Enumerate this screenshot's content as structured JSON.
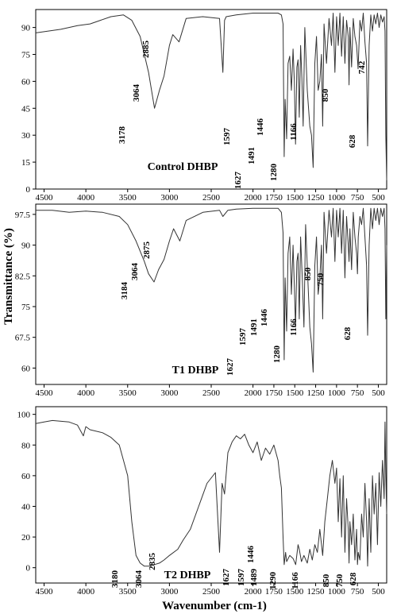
{
  "chart_data": [
    {
      "type": "line",
      "title": "Control DHBP",
      "xlim": [
        4600,
        400
      ],
      "ylim": [
        0,
        100
      ],
      "x_ticks": [
        "4500",
        "4000",
        "3500",
        "3000",
        "2500",
        "2000",
        "1750",
        "1500",
        "1250",
        "1000",
        "750",
        "500"
      ],
      "x_tick_values": [
        4500,
        4000,
        3500,
        3000,
        2500,
        2000,
        1750,
        1500,
        1250,
        1000,
        750,
        500
      ],
      "y_ticks": [
        "0",
        "15",
        "30",
        "45",
        "60",
        "75",
        "90"
      ],
      "y_tick_values": [
        0,
        15,
        30,
        45,
        60,
        75,
        90
      ],
      "peak_labels": [
        "3178",
        "3064",
        "2885",
        "1627",
        "1597",
        "1491",
        "1446",
        "1280",
        "1166",
        "850",
        "742",
        "628"
      ],
      "series": [
        {
          "x": [
            4600,
            4450,
            4300,
            4100,
            3950,
            3700,
            3550,
            3450,
            3350,
            3250,
            3178,
            3120,
            3064,
            3000,
            2960,
            2885,
            2800,
            2600,
            2400,
            2360,
            2340,
            2320,
            2200,
            2000,
            1800,
            1700,
            1660,
            1640,
            1627,
            1615,
            1597,
            1580,
            1560,
            1540,
            1520,
            1505,
            1491,
            1475,
            1460,
            1446,
            1430,
            1415,
            1400,
            1380,
            1350,
            1320,
            1300,
            1280,
            1260,
            1240,
            1220,
            1200,
            1180,
            1166,
            1150,
            1120,
            1090,
            1060,
            1040,
            1020,
            1000,
            980,
            960,
            940,
            920,
            900,
            880,
            860,
            850,
            840,
            820,
            800,
            780,
            760,
            742,
            720,
            700,
            680,
            660,
            640,
            628,
            610,
            590,
            570,
            550,
            530,
            510,
            490,
            470,
            450,
            430,
            420,
            410,
            400
          ],
          "y": [
            87,
            88,
            89,
            91,
            92,
            96,
            97,
            94,
            85,
            65,
            45,
            55,
            63,
            80,
            86,
            82,
            95,
            96,
            95,
            65,
            94,
            96,
            97,
            98,
            98,
            98,
            97,
            92,
            18,
            50,
            28,
            70,
            74,
            55,
            78,
            60,
            25,
            68,
            72,
            40,
            80,
            62,
            35,
            90,
            55,
            35,
            30,
            12,
            70,
            85,
            55,
            60,
            75,
            35,
            92,
            70,
            95,
            80,
            98,
            65,
            96,
            80,
            98,
            74,
            96,
            70,
            94,
            85,
            58,
            90,
            68,
            95,
            85,
            80,
            67,
            94,
            88,
            98,
            82,
            70,
            24,
            80,
            97,
            88,
            97,
            92,
            98,
            90,
            97,
            93,
            96,
            88,
            30,
            5
          ]
        }
      ]
    },
    {
      "type": "line",
      "title": "T1 DHBP",
      "xlim": [
        4600,
        400
      ],
      "ylim": [
        56,
        100
      ],
      "x_ticks": [
        "4500",
        "4000",
        "3500",
        "3000",
        "2500",
        "2000",
        "1750",
        "1500",
        "1250",
        "1000",
        "750",
        "500"
      ],
      "x_tick_values": [
        4500,
        4000,
        3500,
        3000,
        2500,
        2000,
        1750,
        1500,
        1250,
        1000,
        750,
        500
      ],
      "y_ticks": [
        "60",
        "67.5",
        "75",
        "82.5",
        "90",
        "97.5"
      ],
      "y_tick_values": [
        60,
        67.5,
        75,
        82.5,
        90,
        97.5
      ],
      "y_axis_title": "Transmittance (%)",
      "peak_labels": [
        "3184",
        "3064",
        "2875",
        "1627",
        "1597",
        "1491",
        "1446",
        "1280",
        "1166",
        "850",
        "750",
        "628"
      ],
      "series": [
        {
          "x": [
            4600,
            4400,
            4200,
            4000,
            3800,
            3600,
            3500,
            3400,
            3300,
            3250,
            3184,
            3130,
            3064,
            3000,
            2950,
            2875,
            2800,
            2600,
            2400,
            2360,
            2300,
            2200,
            2000,
            1800,
            1700,
            1660,
            1640,
            1627,
            1615,
            1597,
            1580,
            1560,
            1540,
            1520,
            1505,
            1491,
            1475,
            1460,
            1446,
            1430,
            1410,
            1390,
            1370,
            1350,
            1320,
            1300,
            1280,
            1260,
            1240,
            1220,
            1200,
            1180,
            1166,
            1150,
            1120,
            1090,
            1060,
            1040,
            1020,
            1000,
            980,
            960,
            940,
            920,
            900,
            880,
            860,
            850,
            840,
            820,
            800,
            780,
            760,
            750,
            740,
            720,
            700,
            680,
            660,
            640,
            628,
            610,
            590,
            570,
            550,
            530,
            510,
            490,
            470,
            450,
            430,
            420,
            410,
            400
          ],
          "y": [
            98.5,
            98.5,
            98,
            98.3,
            98,
            97,
            95,
            91,
            86,
            83,
            81,
            84,
            86.5,
            91,
            94,
            91,
            96,
            98,
            98.5,
            97,
            98.5,
            98.8,
            99,
            99,
            99,
            98,
            93,
            62,
            82,
            69,
            88,
            92,
            78,
            90,
            80,
            70,
            86,
            88,
            72,
            92,
            82,
            70,
            95,
            85,
            70,
            66,
            59,
            85,
            92,
            78,
            82,
            90,
            72,
            98,
            88,
            98.5,
            92,
            99,
            86,
            98.5,
            92,
            99,
            88,
            98.5,
            82,
            97,
            90,
            86,
            94,
            84,
            98,
            92,
            88,
            83,
            92,
            97,
            95,
            99,
            92,
            85,
            68,
            90,
            99,
            94,
            99,
            96,
            99,
            95,
            99,
            97,
            99,
            94,
            72,
            90
          ]
        }
      ]
    },
    {
      "type": "line",
      "title": "T2 DHBP",
      "xlim": [
        4600,
        400
      ],
      "ylim": [
        -10,
        105
      ],
      "x_ticks": [
        "4500",
        "4000",
        "3500",
        "3000",
        "2500",
        "2000",
        "1750",
        "1500",
        "1250",
        "1000",
        "750",
        "500"
      ],
      "x_tick_values": [
        4500,
        4000,
        3500,
        3000,
        2500,
        2000,
        1750,
        1500,
        1250,
        1000,
        750,
        500
      ],
      "y_ticks": [
        "0",
        "20",
        "40",
        "60",
        "80",
        "100"
      ],
      "y_tick_values": [
        0,
        20,
        40,
        60,
        80,
        100
      ],
      "x_axis_title": "Wavenumber (cm-1)",
      "peak_labels": [
        "3180",
        "3064",
        "2835",
        "1627",
        "1597",
        "1489",
        "1446",
        "1290",
        "1166",
        "850",
        "750",
        "628"
      ],
      "series": [
        {
          "x": [
            4600,
            4500,
            4400,
            4200,
            4100,
            4030,
            4000,
            3950,
            3800,
            3700,
            3600,
            3500,
            3450,
            3400,
            3350,
            3300,
            3250,
            3180,
            3120,
            3064,
            3000,
            2900,
            2835,
            2750,
            2650,
            2550,
            2450,
            2400,
            2370,
            2340,
            2300,
            2250,
            2200,
            2150,
            2100,
            2050,
            2000,
            1950,
            1900,
            1850,
            1800,
            1750,
            1700,
            1680,
            1660,
            1640,
            1627,
            1610,
            1597,
            1560,
            1520,
            1489,
            1460,
            1446,
            1420,
            1390,
            1350,
            1320,
            1290,
            1260,
            1230,
            1200,
            1166,
            1140,
            1110,
            1080,
            1050,
            1020,
            1000,
            980,
            960,
            940,
            920,
            900,
            880,
            860,
            850,
            840,
            820,
            800,
            780,
            760,
            750,
            740,
            720,
            700,
            680,
            660,
            640,
            628,
            610,
            590,
            570,
            550,
            530,
            510,
            490,
            470,
            450,
            430,
            420,
            410,
            400
          ],
          "y": [
            94,
            95,
            96,
            95,
            93,
            86,
            92,
            90,
            88,
            85,
            80,
            60,
            30,
            8,
            3,
            1,
            1,
            2,
            3,
            5,
            8,
            12,
            18,
            25,
            40,
            55,
            62,
            10,
            55,
            48,
            75,
            82,
            86,
            84,
            87,
            80,
            75,
            82,
            70,
            78,
            74,
            80,
            70,
            60,
            52,
            20,
            2,
            10,
            4,
            8,
            6,
            2,
            15,
            12,
            4,
            8,
            3,
            12,
            5,
            15,
            10,
            25,
            8,
            30,
            45,
            60,
            70,
            55,
            65,
            30,
            58,
            20,
            60,
            10,
            45,
            25,
            3,
            30,
            15,
            35,
            5,
            25,
            2,
            10,
            5,
            35,
            20,
            55,
            30,
            1,
            45,
            10,
            60,
            35,
            55,
            15,
            62,
            40,
            70,
            45,
            95,
            60,
            35
          ]
        }
      ]
    }
  ]
}
